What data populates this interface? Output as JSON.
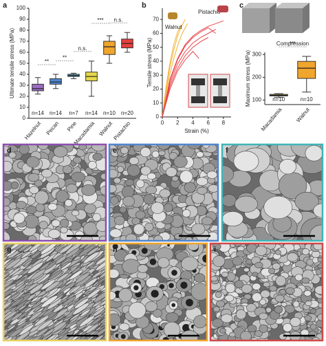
{
  "chart_data": [
    {
      "type": "box",
      "panel": "a",
      "y_label": "Ultimate tensile stress (MPa)",
      "categories": [
        "Hazelnut",
        "Pecan",
        "Pine",
        "Macadamia",
        "Walnut",
        "Pistachio"
      ],
      "n_labels": [
        "n=14",
        "n=14",
        "n=7",
        "n=14",
        "n=10",
        "n=20"
      ],
      "colors": [
        "#9b6cc4",
        "#4f86d0",
        "#3fb6cc",
        "#e6d84a",
        "#f0a52c",
        "#e4403e"
      ],
      "boxes": [
        {
          "min": 22,
          "q1": 25,
          "median": 27,
          "q3": 31,
          "max": 37
        },
        {
          "min": 27,
          "q1": 31,
          "median": 33,
          "q3": 36,
          "max": 40
        },
        {
          "min": 36,
          "q1": 38,
          "median": 39,
          "q3": 40,
          "max": 41
        },
        {
          "min": 20,
          "q1": 34,
          "median": 38,
          "q3": 42,
          "max": 52
        },
        {
          "min": 50,
          "q1": 58,
          "median": 65,
          "q3": 70,
          "max": 75
        },
        {
          "min": 60,
          "q1": 64,
          "median": 68,
          "q3": 72,
          "max": 78
        }
      ],
      "annotations": [
        "**",
        "**",
        "n.s.",
        "***",
        "n.s."
      ],
      "ylim": [
        0,
        100
      ],
      "yticks": [
        0,
        10,
        20,
        30,
        40,
        50,
        60,
        70,
        80,
        90,
        100
      ]
    },
    {
      "type": "line",
      "panel": "b",
      "x_label": "Strain (%)",
      "y_label": "Tensile stress (MPa)",
      "xlim": [
        0,
        9
      ],
      "xticks": [
        0,
        2,
        4,
        6,
        8
      ],
      "ylim": [
        0,
        78
      ],
      "yticks": [
        0,
        10,
        20,
        30,
        40,
        50,
        60,
        70
      ],
      "series": [
        {
          "name": "Walnut",
          "color": "#f0b030",
          "curves": [
            {
              "x": [
                0,
                0.5,
                1,
                1.5,
                2,
                2.5,
                3
              ],
              "values": [
                0,
                20,
                36,
                48,
                58,
                65,
                70
              ]
            },
            {
              "x": [
                0,
                0.5,
                1,
                1.5,
                2,
                2.6,
                3.3
              ],
              "values": [
                0,
                17,
                31,
                42,
                51,
                60,
                67
              ]
            },
            {
              "x": [
                0,
                0.5,
                1,
                1.5,
                2,
                2.5
              ],
              "values": [
                0,
                22,
                39,
                52,
                61,
                66
              ]
            }
          ]
        },
        {
          "name": "Pistachio",
          "color": "#e8444a",
          "curves": [
            {
              "x": [
                0,
                1,
                2,
                3,
                4,
                5,
                6,
                7,
                8
              ],
              "values": [
                0,
                27,
                42,
                52,
                58,
                62,
                65,
                67,
                69
              ]
            },
            {
              "x": [
                0,
                1,
                2,
                3,
                4,
                5,
                6,
                7
              ],
              "values": [
                0,
                24,
                38,
                47,
                53,
                57,
                60,
                63
              ]
            },
            {
              "x": [
                0,
                1,
                2,
                3,
                4,
                5,
                6
              ],
              "values": [
                0,
                22,
                35,
                44,
                50,
                54,
                57
              ]
            },
            {
              "x": [
                0,
                1,
                2,
                3,
                4,
                4.8
              ],
              "values": [
                0,
                20,
                33,
                41,
                47,
                42
              ]
            },
            {
              "x": [
                0,
                1,
                2,
                3,
                4,
                5,
                6,
                7
              ],
              "values": [
                0,
                26,
                41,
                51,
                57,
                61,
                64,
                60
              ]
            }
          ]
        }
      ]
    },
    {
      "type": "box",
      "panel": "c",
      "title": "Compression",
      "y_label": "Maximum stress (MPa)",
      "categories": [
        "Macadamia",
        "Walnut"
      ],
      "n_labels": [
        "n=10",
        "n=10"
      ],
      "colors": [
        "#e6d84a",
        "#f0a52c"
      ],
      "boxes": [
        {
          "min": 112,
          "q1": 118,
          "median": 121,
          "q3": 125,
          "max": 128
        },
        {
          "min": 135,
          "q1": 195,
          "median": 240,
          "q3": 270,
          "max": 292
        }
      ],
      "annotations": [
        "***"
      ],
      "ylim": [
        80,
        310
      ],
      "yticks": [
        100,
        200,
        300
      ]
    }
  ],
  "images": [
    {
      "panel": "d",
      "color": "#8e4fb0"
    },
    {
      "panel": "e",
      "color": "#4f86d0"
    },
    {
      "panel": "f",
      "color": "#3fb6b8"
    },
    {
      "panel": "g",
      "color": "#e8d060"
    },
    {
      "panel": "h",
      "color": "#f0a52c"
    },
    {
      "panel": "i",
      "color": "#d04848"
    }
  ]
}
